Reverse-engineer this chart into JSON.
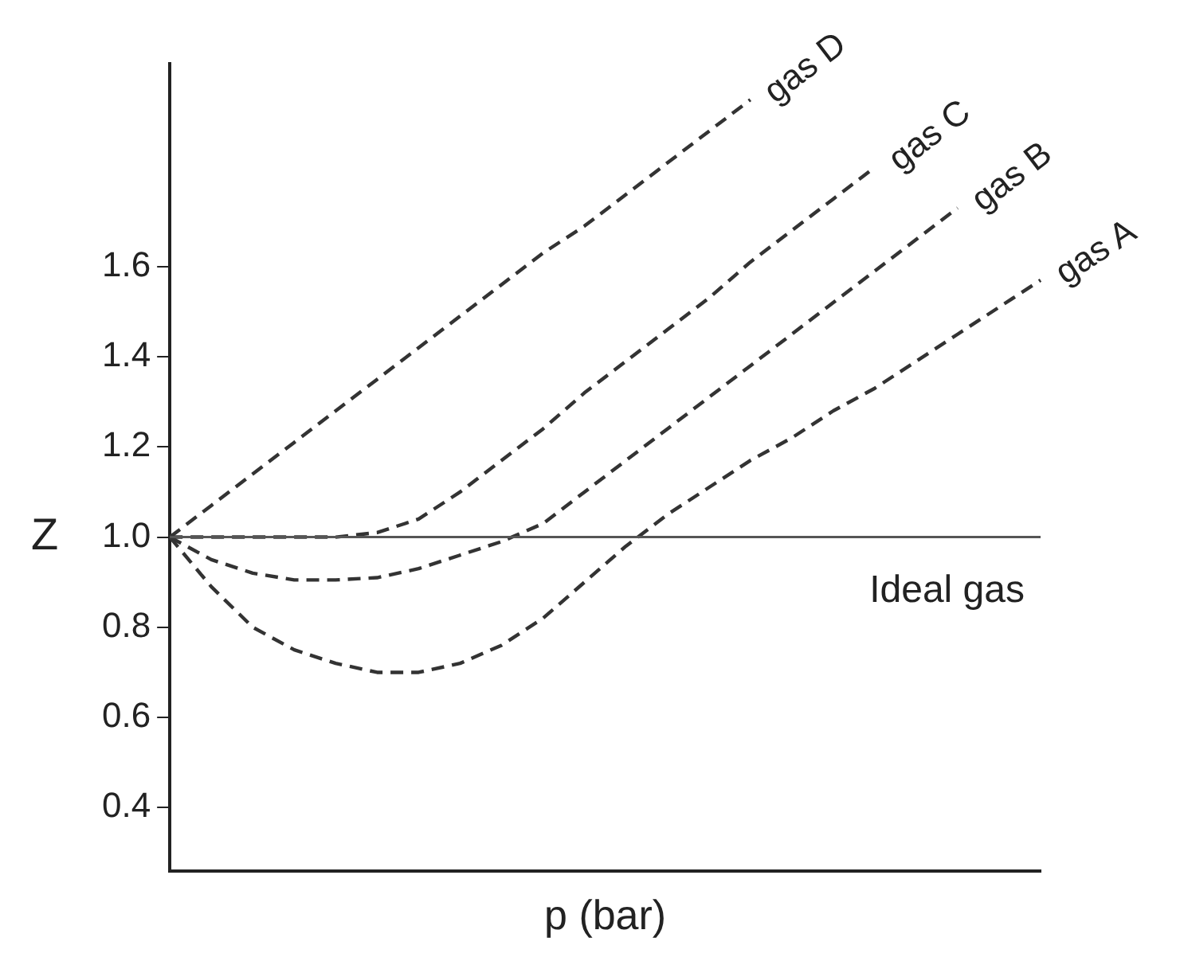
{
  "chart_data": {
    "type": "line",
    "xlabel": "p (bar)",
    "ylabel": "Z",
    "ylim": [
      0.26,
      2.05
    ],
    "categories": [
      null,
      null,
      null,
      null,
      null,
      null,
      null,
      null,
      null,
      null,
      null,
      null,
      null,
      null,
      null,
      null,
      null,
      null,
      null,
      null,
      null,
      null
    ],
    "yticks": [
      {
        "value": 0.4,
        "label": "0.4"
      },
      {
        "value": 0.6,
        "label": "0.6"
      },
      {
        "value": 0.8,
        "label": "0.8"
      },
      {
        "value": 1,
        "label": "1.0"
      },
      {
        "value": 1.2,
        "label": "1.2"
      },
      {
        "value": 1.4,
        "label": "1.4"
      },
      {
        "value": 1.6,
        "label": "1.6"
      }
    ],
    "tick_labels": "y",
    "grid": false,
    "legend": false,
    "marker": "none",
    "line_style": "dashed",
    "series": [
      {
        "name": "gas A",
        "color": "#333333",
        "values": [
          1.0,
          0.89,
          0.8,
          0.75,
          0.72,
          0.7,
          0.7,
          0.72,
          0.76,
          0.82,
          0.9,
          0.98,
          1.05,
          1.11,
          1.17,
          1.22,
          1.28,
          1.33,
          1.39,
          1.45,
          1.51,
          1.57
        ]
      },
      {
        "name": "gas B",
        "color": "#333333",
        "values": [
          1.0,
          0.95,
          0.92,
          0.905,
          0.905,
          0.91,
          0.93,
          0.96,
          0.99,
          1.03,
          1.1,
          1.17,
          1.24,
          1.31,
          1.38,
          1.45,
          1.52,
          1.59,
          1.66,
          1.73,
          null,
          null
        ]
      },
      {
        "name": "gas C",
        "color": "#333333",
        "values": [
          1.0,
          1.0,
          1.0,
          1.0,
          1.0,
          1.01,
          1.04,
          1.1,
          1.17,
          1.24,
          1.32,
          1.39,
          1.46,
          1.53,
          1.61,
          1.68,
          1.75,
          1.82,
          null,
          null,
          null,
          null
        ]
      },
      {
        "name": "gas D",
        "color": "#333333",
        "values": [
          1.0,
          1.07,
          1.14,
          1.21,
          1.28,
          1.35,
          1.42,
          1.49,
          1.56,
          1.63,
          1.69,
          1.76,
          1.83,
          1.9,
          1.97,
          null,
          null,
          null,
          null,
          null,
          null,
          null
        ]
      }
    ],
    "ref_lines": [
      {
        "axis": "y",
        "value": 1,
        "label": "Ideal gas",
        "color": "#555555",
        "line_style": "solid"
      }
    ]
  }
}
